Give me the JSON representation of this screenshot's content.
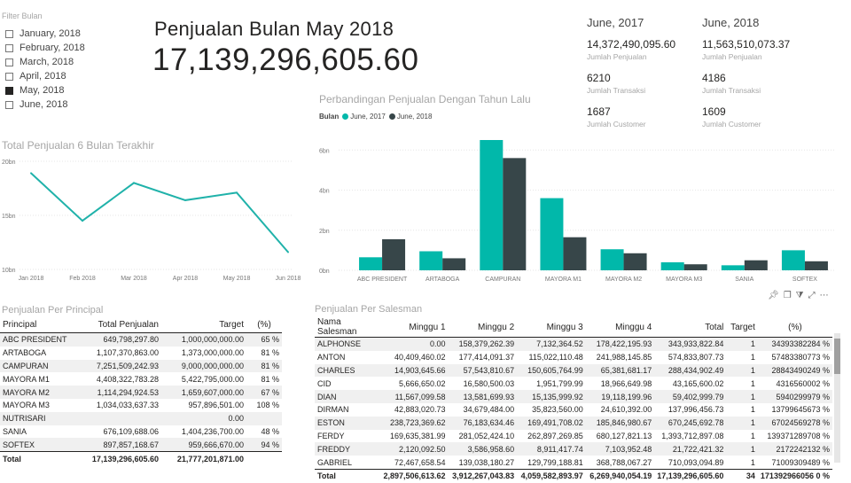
{
  "filter": {
    "title": "Filter Bulan",
    "items": [
      {
        "label": "January, 2018",
        "selected": false
      },
      {
        "label": "February, 2018",
        "selected": false
      },
      {
        "label": "March, 2018",
        "selected": false
      },
      {
        "label": "April, 2018",
        "selected": false
      },
      {
        "label": "May, 2018",
        "selected": true
      },
      {
        "label": "June, 2018",
        "selected": false
      }
    ]
  },
  "headline": {
    "title": "Penjualan Bulan May 2018",
    "value": "17,139,296,605.60"
  },
  "kpi": [
    {
      "period": "June, 2017",
      "sales": "14,372,490,095.60",
      "sales_label": "Jumlah Penjualan",
      "transactions": "6210",
      "transactions_label": "Jumlah Transaksi",
      "customers": "1687",
      "customers_label": "Jumlah Customer"
    },
    {
      "period": "June, 2018",
      "sales": "11,563,510,073.37",
      "sales_label": "Jumlah Penjualan",
      "transactions": "4186",
      "transactions_label": "Jumlah Transaksi",
      "customers": "1609",
      "customers_label": "Jumlah Customer"
    }
  ],
  "colors": {
    "teal": "#01b8aa",
    "dark": "#374649",
    "line": "#20b2aa"
  },
  "chart_data": [
    {
      "type": "line",
      "title": "Total Penjualan 6 Bulan Terakhir",
      "x": [
        "Jan 2018",
        "Feb 2018",
        "Mar 2018",
        "Apr 2018",
        "May 2018",
        "Jun 2018"
      ],
      "values": [
        18.9,
        14.5,
        18.0,
        16.4,
        17.1,
        11.6
      ],
      "yticks": [
        "20bn",
        "15bn",
        "10bn"
      ],
      "ylim": [
        10,
        20
      ],
      "unit": "bn"
    },
    {
      "type": "bar",
      "title": "Perbandingan Penjualan Dengan Tahun Lalu",
      "legend_title": "Bulan",
      "categories": [
        "ABC PRESIDENT",
        "ARTABOGA",
        "CAMPURAN",
        "MAYORA M1",
        "MAYORA M2",
        "MAYORA M3",
        "SANIA",
        "SOFTEX"
      ],
      "series": [
        {
          "name": "June, 2017",
          "values": [
            0.65,
            0.95,
            6.5,
            3.6,
            1.05,
            0.4,
            0.25,
            1.0
          ]
        },
        {
          "name": "June, 2018",
          "values": [
            1.55,
            0.6,
            5.6,
            1.65,
            0.85,
            0.3,
            0.5,
            0.45
          ]
        }
      ],
      "yticks": [
        "6bn",
        "4bn",
        "2bn",
        "0bn"
      ],
      "ylim": [
        0,
        6.5
      ],
      "unit": "bn"
    }
  ],
  "principal_table": {
    "title": "Penjualan Per Principal",
    "headers": [
      "Principal",
      "Total Penjualan",
      "Target",
      "(%)"
    ],
    "rows": [
      [
        "ABC PRESIDENT",
        "649,798,297.80",
        "1,000,000,000.00",
        "65 %"
      ],
      [
        "ARTABOGA",
        "1,107,370,863.00",
        "1,373,000,000.00",
        "81 %"
      ],
      [
        "CAMPURAN",
        "7,251,509,242.93",
        "9,000,000,000.00",
        "81 %"
      ],
      [
        "MAYORA M1",
        "4,408,322,783.28",
        "5,422,795,000.00",
        "81 %"
      ],
      [
        "MAYORA M2",
        "1,114,294,924.53",
        "1,659,607,000.00",
        "67 %"
      ],
      [
        "MAYORA M3",
        "1,034,033,637.33",
        "957,896,501.00",
        "108 %"
      ],
      [
        "NUTRISARI",
        "",
        "0.00",
        ""
      ],
      [
        "SANIA",
        "676,109,688.06",
        "1,404,236,700.00",
        "48 %"
      ],
      [
        "SOFTEX",
        "897,857,168.67",
        "959,666,670.00",
        "94 %"
      ]
    ],
    "total": [
      "Total",
      "17,139,296,605.60",
      "21,777,201,871.00",
      ""
    ]
  },
  "salesman_table": {
    "title": "Penjualan Per Salesman",
    "headers": [
      "Nama Salesman",
      "Minggu 1",
      "Minggu 2",
      "Minggu 3",
      "Minggu 4",
      "Total",
      "Target",
      "(%)"
    ],
    "rows": [
      [
        "ALPHONSE",
        "0.00",
        "158,379,262.39",
        "7,132,364.52",
        "178,422,195.93",
        "343,933,822.84",
        "1",
        "34393382284 %"
      ],
      [
        "ANTON",
        "40,409,460.02",
        "177,414,091.37",
        "115,022,110.48",
        "241,988,145.85",
        "574,833,807.73",
        "1",
        "57483380773 %"
      ],
      [
        "CHARLES",
        "14,903,645.66",
        "57,543,810.67",
        "150,605,764.99",
        "65,381,681.17",
        "288,434,902.49",
        "1",
        "28843490249 %"
      ],
      [
        "CID",
        "5,666,650.02",
        "16,580,500.03",
        "1,951,799.99",
        "18,966,649.98",
        "43,165,600.02",
        "1",
        "4316560002 %"
      ],
      [
        "DIAN",
        "11,567,099.58",
        "13,581,699.93",
        "15,135,999.92",
        "19,118,199.96",
        "59,402,999.79",
        "1",
        "5940299979 %"
      ],
      [
        "DIRMAN",
        "42,883,020.73",
        "34,679,484.00",
        "35,823,560.00",
        "24,610,392.00",
        "137,996,456.73",
        "1",
        "13799645673 %"
      ],
      [
        "ESTON",
        "238,723,369.62",
        "76,183,634.46",
        "169,491,708.02",
        "185,846,980.67",
        "670,245,692.78",
        "1",
        "67024569278 %"
      ],
      [
        "FERDY",
        "169,635,381.99",
        "281,052,424.10",
        "262,897,269.85",
        "680,127,821.13",
        "1,393,712,897.08",
        "1",
        "139371289708 %"
      ],
      [
        "FREDDY",
        "2,120,092.50",
        "3,586,958.60",
        "8,911,417.74",
        "7,103,952.48",
        "21,722,421.32",
        "1",
        "2172242132 %"
      ],
      [
        "GABRIEL",
        "72,467,658.54",
        "139,038,180.27",
        "129,799,188.81",
        "368,788,067.27",
        "710,093,094.89",
        "1",
        "71009309489 %"
      ]
    ],
    "total": [
      "Total",
      "2,897,506,613.62",
      "3,912,267,043.83",
      "4,059,582,893.97",
      "6,269,940,054.19",
      "17,139,296,605.60",
      "34",
      "171392966056 0 %"
    ]
  }
}
